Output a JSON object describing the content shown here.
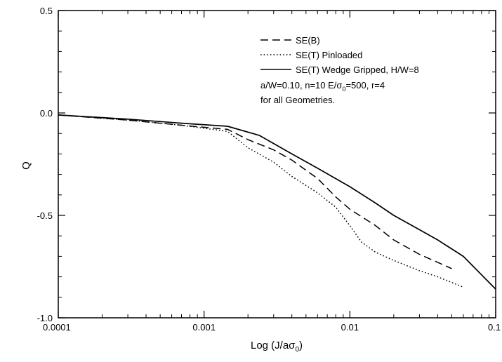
{
  "chart_data": {
    "type": "line",
    "title": "",
    "xlabel": "Log (J/aσ",
    "xlabel_sub": "0",
    "xlabel_close": ")",
    "ylabel": "Q",
    "x_scale": "log",
    "xlim": [
      0.0001,
      0.1
    ],
    "ylim": [
      -1.0,
      0.5
    ],
    "x_ticks": [
      0.0001,
      0.001,
      0.01,
      0.1
    ],
    "x_tick_labels": [
      "0.0001",
      "0.001",
      "0.01",
      "0.1"
    ],
    "y_ticks": [
      0.5,
      0.0,
      -0.5,
      -1.0
    ],
    "y_tick_labels": [
      "0.5",
      "0.0",
      "-0.5",
      "-1.0"
    ],
    "grid": false,
    "legend_position": "top-right",
    "series": [
      {
        "name": "SE(B)",
        "style": "dashed",
        "x": [
          0.0001,
          0.0003,
          0.0007,
          0.00145,
          0.002,
          0.003,
          0.004,
          0.006,
          0.008,
          0.01,
          0.015,
          0.02,
          0.03,
          0.05
        ],
        "y": [
          -0.01,
          -0.035,
          -0.06,
          -0.08,
          -0.13,
          -0.18,
          -0.23,
          -0.32,
          -0.41,
          -0.47,
          -0.55,
          -0.62,
          -0.69,
          -0.76
        ]
      },
      {
        "name": "SE(T) Pinloaded",
        "style": "dotted",
        "x": [
          0.0001,
          0.0003,
          0.0007,
          0.00145,
          0.002,
          0.003,
          0.004,
          0.006,
          0.008,
          0.01,
          0.012,
          0.015,
          0.02,
          0.03,
          0.04,
          0.06
        ],
        "y": [
          -0.01,
          -0.035,
          -0.06,
          -0.09,
          -0.17,
          -0.24,
          -0.31,
          -0.39,
          -0.46,
          -0.55,
          -0.63,
          -0.68,
          -0.72,
          -0.77,
          -0.8,
          -0.85
        ]
      },
      {
        "name": "SE(T) Wedge Gripped, H/W=8",
        "style": "solid",
        "x": [
          0.0001,
          0.0003,
          0.0007,
          0.00145,
          0.0024,
          0.004,
          0.006,
          0.01,
          0.015,
          0.02,
          0.03,
          0.04,
          0.06,
          0.1
        ],
        "y": [
          -0.01,
          -0.03,
          -0.05,
          -0.065,
          -0.11,
          -0.2,
          -0.27,
          -0.36,
          -0.44,
          -0.5,
          -0.57,
          -0.62,
          -0.7,
          -0.86
        ]
      }
    ],
    "annotation_lines": [
      "a/W=0.10, n=10 E/σ",
      "0",
      "=500, r=4",
      "for all Geometries."
    ]
  }
}
